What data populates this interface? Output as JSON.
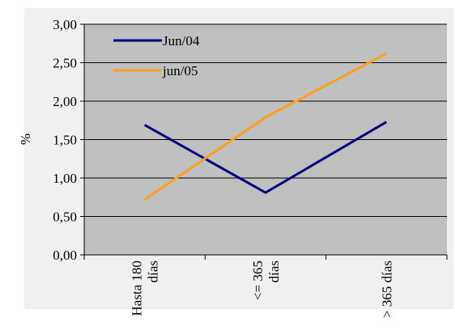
{
  "chart_data": {
    "type": "line",
    "categories": [
      [
        "Hasta 180",
        "días"
      ],
      [
        "<= 365",
        "días"
      ],
      [
        "> 365 días"
      ]
    ],
    "series": [
      {
        "name": "Jun/04",
        "color": "#000080",
        "values": [
          1.69,
          0.81,
          1.73
        ]
      },
      {
        "name": "jun/05",
        "color": "#ffa020",
        "values": [
          0.72,
          1.79,
          2.62
        ]
      }
    ],
    "y_ticks": [
      "0,00",
      "0,50",
      "1,00",
      "1,50",
      "2,00",
      "2,50",
      "3,00"
    ],
    "ylim": [
      0,
      3
    ],
    "ylabel": "%",
    "xlabel": "",
    "grid": true,
    "legend": "top-left",
    "plot_background": "#c0c0c0",
    "gridline_color": "#000000"
  }
}
